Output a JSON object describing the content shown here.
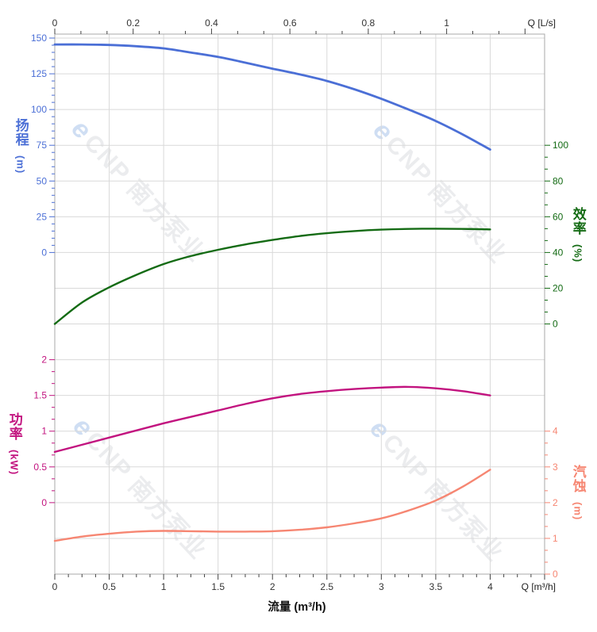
{
  "watermark": {
    "logo": "e",
    "text": "CNP 南方泵业"
  },
  "colors": {
    "grid": "#d9d9d9",
    "border": "#a9a9a9",
    "axis_text": "#333333",
    "head": "#4b6fd6",
    "efficiency": "#146b14",
    "power": "#c2137f",
    "npsh": "#f68672"
  },
  "chart_data": {
    "type": "line",
    "grid": true,
    "x_axis_bottom": {
      "label": "Q [m³/h]",
      "title": "流量 (m³/h)",
      "ticks": [
        0,
        0.5,
        1,
        1.5,
        2,
        2.5,
        3,
        3.5,
        4
      ],
      "range": [
        0,
        4.5
      ]
    },
    "x_axis_top": {
      "label": "Q [L/s]",
      "ticks": [
        0,
        0.2,
        0.4,
        0.6,
        0.8,
        1
      ],
      "m3h_per_unit": 3.6,
      "range": [
        0,
        1.25
      ]
    },
    "y_axes": {
      "head": {
        "title": "扬程",
        "unit": "(m)",
        "color": "#4b6fd6",
        "ticks": [
          150,
          125,
          100,
          75,
          50,
          25,
          0
        ],
        "range": [
          0,
          150
        ]
      },
      "efficiency": {
        "title": "效率",
        "unit": "(%)",
        "color": "#146b14",
        "ticks": [
          100,
          80,
          60,
          40,
          20,
          0
        ],
        "range": [
          0,
          100
        ]
      },
      "power": {
        "title": "功率",
        "unit": "(kW)",
        "color": "#c2137f",
        "ticks": [
          2,
          1.5,
          1,
          0.5,
          0
        ],
        "range": [
          0,
          2
        ]
      },
      "npsh": {
        "title": "汽蚀",
        "unit": "(m)",
        "color": "#f68672",
        "ticks": [
          4,
          3,
          2,
          1,
          0
        ],
        "range": [
          0,
          4
        ]
      }
    },
    "series": [
      {
        "name": "head",
        "axis": "head",
        "unit": "m",
        "x": [
          0,
          0.25,
          0.5,
          0.75,
          1,
          1.25,
          1.5,
          1.75,
          2,
          2.25,
          2.5,
          2.75,
          3,
          3.25,
          3.5,
          3.75,
          4
        ],
        "y": [
          145.5,
          145.5,
          145.2,
          144.3,
          142.8,
          139.9,
          136.8,
          132.8,
          128.6,
          124.6,
          120.0,
          114.2,
          107.5,
          100.0,
          92.0,
          82.5,
          72.0
        ]
      },
      {
        "name": "efficiency",
        "axis": "efficiency",
        "unit": "%",
        "x": [
          0,
          0.25,
          0.5,
          0.75,
          1,
          1.25,
          1.5,
          1.75,
          2,
          2.25,
          2.5,
          2.75,
          3,
          3.25,
          3.5,
          3.75,
          4
        ],
        "y": [
          0,
          12,
          20.5,
          27.5,
          33.5,
          38,
          41.5,
          44.5,
          47,
          49.2,
          50.8,
          52,
          52.8,
          53.2,
          53.3,
          53.2,
          52.9
        ]
      },
      {
        "name": "power",
        "axis": "power",
        "unit": "kW",
        "x": [
          0,
          0.25,
          0.5,
          0.75,
          1,
          1.25,
          1.5,
          1.75,
          2,
          2.25,
          2.5,
          2.75,
          3,
          3.25,
          3.5,
          3.75,
          4
        ],
        "y": [
          0.71,
          0.81,
          0.91,
          1.01,
          1.11,
          1.2,
          1.29,
          1.38,
          1.46,
          1.52,
          1.56,
          1.59,
          1.61,
          1.62,
          1.6,
          1.56,
          1.5
        ]
      },
      {
        "name": "npsh",
        "axis": "npsh",
        "unit": "m",
        "x": [
          0,
          0.25,
          0.5,
          0.75,
          1,
          1.25,
          1.5,
          1.75,
          2,
          2.25,
          2.5,
          2.75,
          3,
          3.25,
          3.5,
          3.75,
          4
        ],
        "y": [
          0.93,
          1.05,
          1.13,
          1.19,
          1.21,
          1.2,
          1.19,
          1.19,
          1.2,
          1.24,
          1.31,
          1.42,
          1.56,
          1.78,
          2.06,
          2.45,
          2.92
        ]
      }
    ]
  }
}
